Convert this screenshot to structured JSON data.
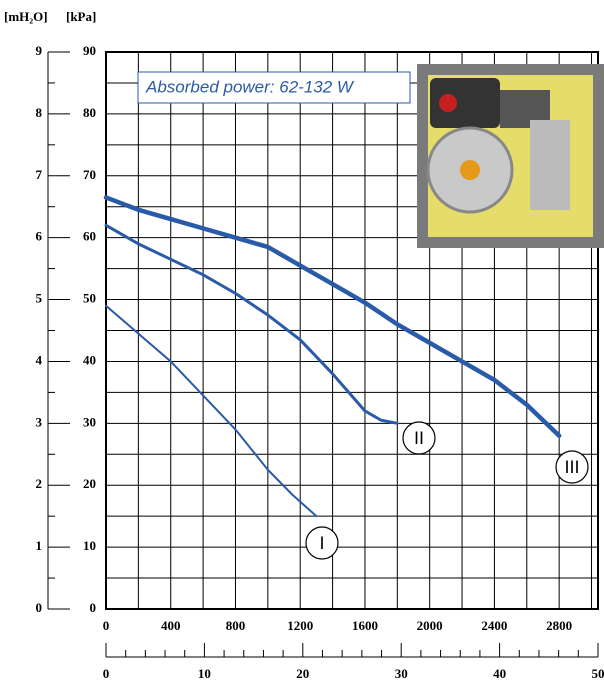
{
  "chart_data": {
    "type": "line",
    "y_unit_labels": [
      "[mH₂O]",
      "[kPa]"
    ],
    "annotation": "Absorbed power: 62-132 W",
    "xlim": [
      0,
      3040
    ],
    "xticks": [
      0,
      400,
      800,
      1200,
      1600,
      2000,
      2400,
      2800
    ],
    "x2lim": [
      0,
      50
    ],
    "x2ticks": [
      0,
      10,
      20,
      30,
      40,
      50
    ],
    "ylim": [
      0,
      90
    ],
    "yticks": [
      0,
      10,
      20,
      30,
      40,
      50,
      60,
      70,
      80,
      90
    ],
    "y2lim": [
      0,
      9
    ],
    "y2ticks": [
      0,
      1,
      2,
      3,
      4,
      5,
      6,
      7,
      8,
      9
    ],
    "grid": true,
    "series": [
      {
        "name": "I",
        "color": "#2a5ba8",
        "x": [
          0,
          200,
          400,
          600,
          800,
          1000,
          1150,
          1300
        ],
        "values": [
          49,
          44.5,
          40,
          34.5,
          29,
          22.5,
          18.5,
          15
        ]
      },
      {
        "name": "II",
        "color": "#2a5ba8",
        "x": [
          0,
          200,
          400,
          600,
          800,
          1000,
          1200,
          1400,
          1500,
          1600,
          1700,
          1800
        ],
        "values": [
          62,
          59,
          56.5,
          54,
          51,
          47.5,
          43.5,
          38,
          35,
          32,
          30.5,
          30
        ]
      },
      {
        "name": "III",
        "color": "#2a5ba8",
        "x": [
          0,
          200,
          400,
          600,
          800,
          1000,
          1200,
          1400,
          1600,
          1800,
          2000,
          2200,
          2400,
          2600,
          2800
        ],
        "values": [
          66.5,
          64.5,
          63,
          61.5,
          60,
          58.5,
          55.5,
          52.5,
          49.5,
          46,
          43,
          40,
          37,
          33,
          28
        ]
      }
    ]
  }
}
